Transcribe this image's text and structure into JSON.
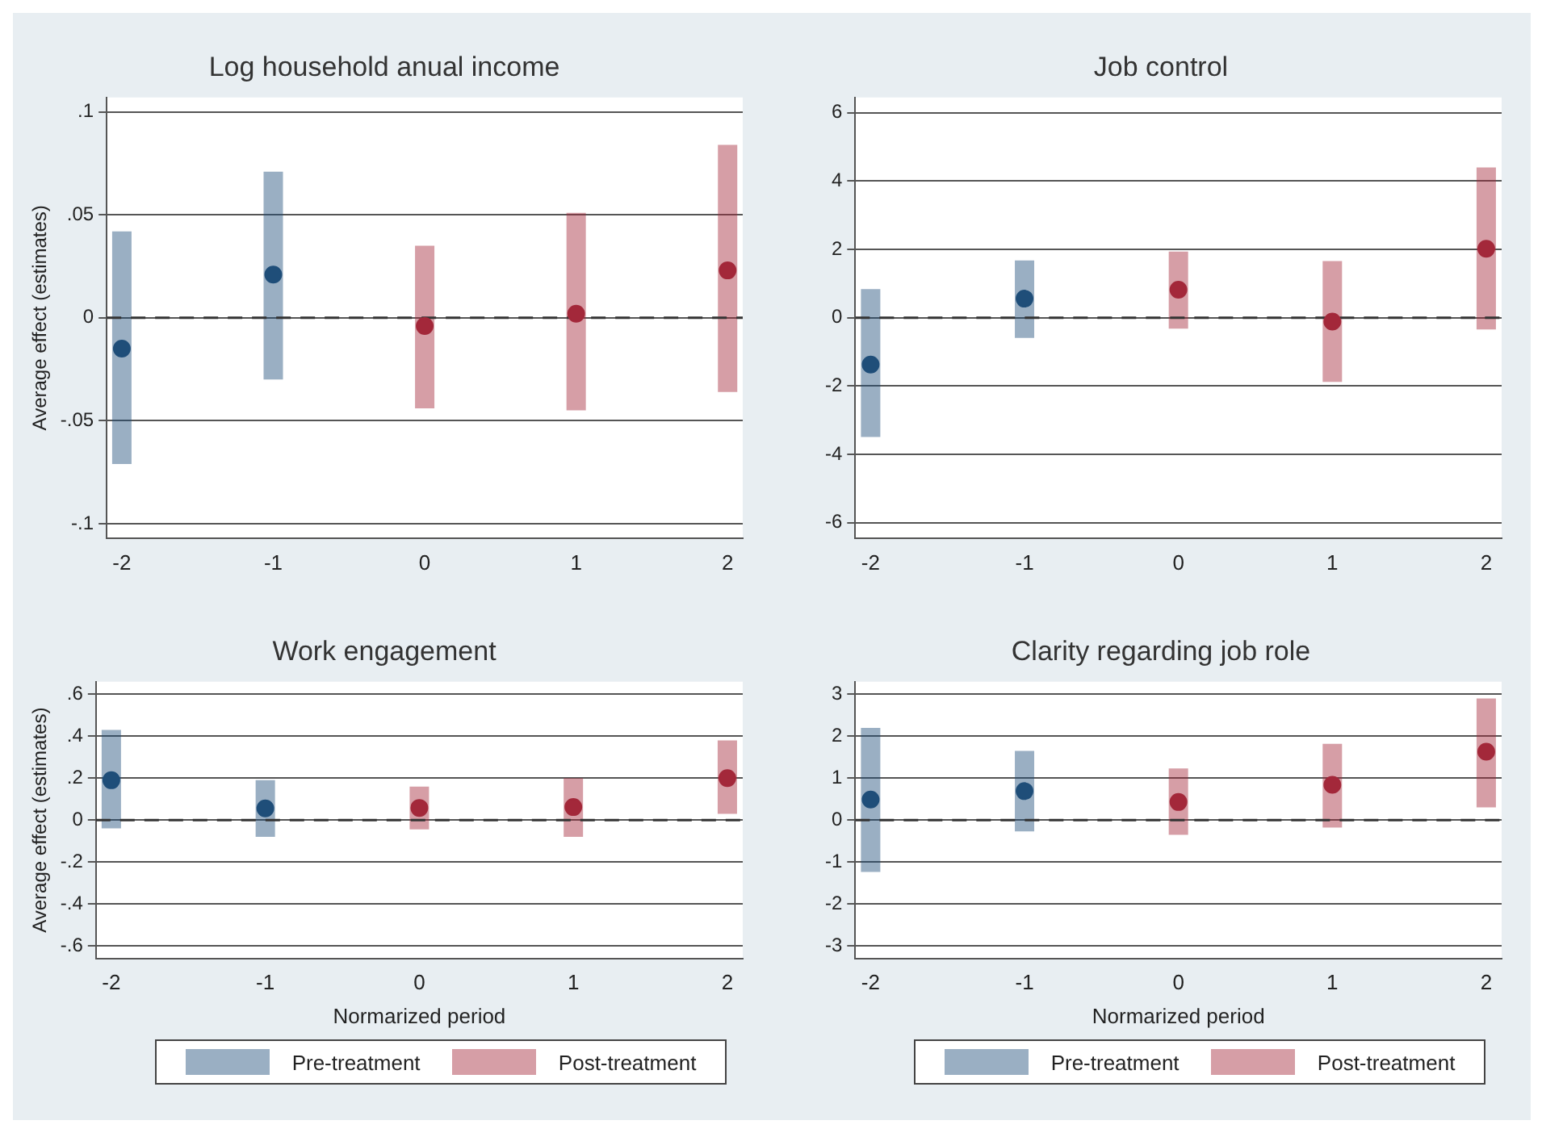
{
  "chart_data": [
    {
      "type": "scatter",
      "title": "Log household anual income",
      "ylabel": "Average effect (estimates)",
      "xlim": [
        -2.1,
        2.1
      ],
      "xticks": [
        -2,
        -1,
        0,
        1,
        2
      ],
      "ylim": [
        -0.107,
        0.107
      ],
      "yticks": [
        {
          "value": -0.1,
          "label": "-.1"
        },
        {
          "value": -0.05,
          "label": "-.05"
        },
        0,
        {
          "value": 0.05,
          "label": ".05"
        },
        {
          "value": 0.1,
          "label": ".1"
        }
      ],
      "grid": "y",
      "legend": false,
      "marker": "circle",
      "ref_lines": [
        {
          "axis": "y",
          "value": 0,
          "color": "#333333",
          "line_style": "dashed"
        }
      ],
      "series": [
        {
          "color": "#1f4e79",
          "x": [
            -2,
            -1
          ],
          "values": [
            -0.015,
            0.021
          ],
          "errors": [
            [
              -0.071,
              0.042
            ],
            [
              -0.03,
              0.071
            ]
          ]
        },
        {
          "color": "#a3283a",
          "x": [
            0,
            1,
            2
          ],
          "values": [
            -0.004,
            0.002,
            0.023
          ],
          "errors": [
            [
              -0.044,
              0.035
            ],
            [
              -0.045,
              0.051
            ],
            [
              -0.036,
              0.084
            ]
          ]
        }
      ]
    },
    {
      "type": "scatter",
      "title": "Job control",
      "xlim": [
        -2.1,
        2.1
      ],
      "xticks": [
        -2,
        -1,
        0,
        1,
        2
      ],
      "ylim": [
        -6.45,
        6.45
      ],
      "yticks": [
        -6,
        -4,
        -2,
        0,
        2,
        4,
        6
      ],
      "grid": "y",
      "legend": false,
      "marker": "circle",
      "ref_lines": [
        {
          "axis": "y",
          "value": 0,
          "color": "#333333",
          "line_style": "dashed"
        }
      ],
      "series": [
        {
          "color": "#1f4e79",
          "x": [
            -2,
            -1
          ],
          "values": [
            -1.37,
            0.56
          ],
          "errors": [
            [
              -3.49,
              0.84
            ],
            [
              -0.59,
              1.68
            ]
          ]
        },
        {
          "color": "#a3283a",
          "x": [
            0,
            1,
            2
          ],
          "values": [
            0.82,
            -0.11,
            2.02
          ],
          "errors": [
            [
              -0.32,
              1.94
            ],
            [
              -1.88,
              1.66
            ],
            [
              -0.34,
              4.4
            ]
          ]
        }
      ]
    },
    {
      "type": "scatter",
      "title": "Work engagement",
      "xlabel": "Normarized period",
      "ylabel": "Average effect (estimates)",
      "xlim": [
        -2.1,
        2.1
      ],
      "xticks": [
        -2,
        -1,
        0,
        1,
        2
      ],
      "ylim": [
        -0.66,
        0.66
      ],
      "yticks": [
        {
          "value": -0.6,
          "label": "-.6"
        },
        {
          "value": -0.4,
          "label": "-.4"
        },
        {
          "value": -0.2,
          "label": "-.2"
        },
        0,
        {
          "value": 0.2,
          "label": ".2"
        },
        {
          "value": 0.4,
          "label": ".4"
        },
        {
          "value": 0.6,
          "label": ".6"
        }
      ],
      "grid": "y",
      "legend": "bottom",
      "marker": "circle",
      "ref_lines": [
        {
          "axis": "y",
          "value": 0,
          "color": "#333333",
          "line_style": "dashed"
        }
      ],
      "series": [
        {
          "name": "Pre-treatment",
          "color": "#1f4e79",
          "x": [
            -2,
            -1
          ],
          "values": [
            0.19,
            0.056
          ],
          "errors": [
            [
              -0.04,
              0.43
            ],
            [
              -0.08,
              0.19
            ]
          ]
        },
        {
          "name": "Post-treatment",
          "color": "#a3283a",
          "x": [
            0,
            1,
            2
          ],
          "values": [
            0.058,
            0.062,
            0.2
          ],
          "errors": [
            [
              -0.044,
              0.16
            ],
            [
              -0.08,
              0.2
            ],
            [
              0.03,
              0.38
            ]
          ]
        }
      ]
    },
    {
      "type": "scatter",
      "title": "Clarity regarding job role",
      "xlabel": "Normarized period",
      "xlim": [
        -2.1,
        2.1
      ],
      "xticks": [
        -2,
        -1,
        0,
        1,
        2
      ],
      "ylim": [
        -3.3,
        3.3
      ],
      "yticks": [
        -3,
        -2,
        -1,
        0,
        1,
        2,
        3
      ],
      "grid": "y",
      "legend": "bottom",
      "marker": "circle",
      "ref_lines": [
        {
          "axis": "y",
          "value": 0,
          "color": "#333333",
          "line_style": "dashed"
        }
      ],
      "series": [
        {
          "name": "Pre-treatment",
          "color": "#1f4e79",
          "x": [
            -2,
            -1
          ],
          "values": [
            0.49,
            0.69
          ],
          "errors": [
            [
              -1.24,
              2.2
            ],
            [
              -0.27,
              1.65
            ]
          ]
        },
        {
          "name": "Post-treatment",
          "color": "#a3283a",
          "x": [
            0,
            1,
            2
          ],
          "values": [
            0.43,
            0.84,
            1.63
          ],
          "errors": [
            [
              -0.35,
              1.23
            ],
            [
              -0.18,
              1.82
            ],
            [
              0.3,
              2.9
            ]
          ]
        }
      ]
    }
  ]
}
